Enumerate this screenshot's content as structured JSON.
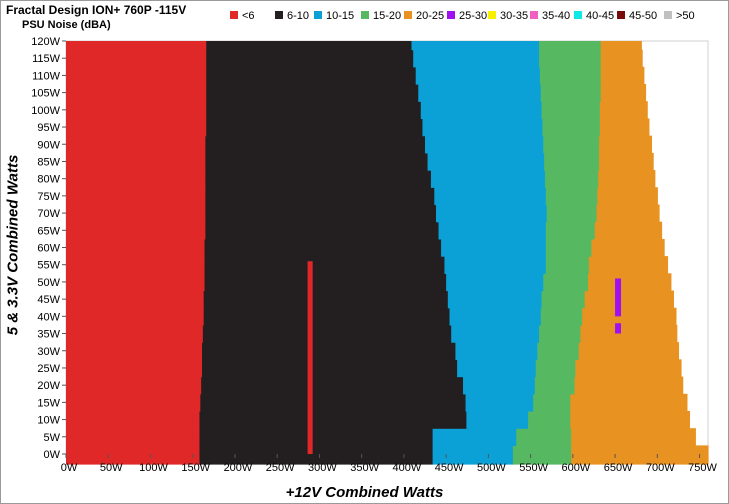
{
  "chart_data": {
    "type": "heatmap",
    "title": "Fractal Design ION+ 760P -115V",
    "subtitle": "PSU Noise (dBA)",
    "xlabel": "+12V Combined Watts",
    "ylabel": "5 & 3.3V Combined Watts",
    "xlim": [
      0,
      760
    ],
    "ylim": [
      0,
      120
    ],
    "x_ticks": [
      "0W",
      "50W",
      "100W",
      "150W",
      "200W",
      "250W",
      "300W",
      "350W",
      "400W",
      "450W",
      "500W",
      "550W",
      "600W",
      "650W",
      "700W",
      "750W"
    ],
    "y_ticks": [
      "0W",
      "5W",
      "10W",
      "15W",
      "20W",
      "25W",
      "30W",
      "35W",
      "40W",
      "45W",
      "50W",
      "55W",
      "60W",
      "65W",
      "70W",
      "75W",
      "80W",
      "85W",
      "90W",
      "95W",
      "100W",
      "105W",
      "110W",
      "115W",
      "120W"
    ],
    "legend_position": "top",
    "legend": [
      {
        "label": "<6",
        "color": "#e02828"
      },
      {
        "label": "6-10",
        "color": "#231f20"
      },
      {
        "label": "10-15",
        "color": "#0ca1d6"
      },
      {
        "label": "15-20",
        "color": "#57b862"
      },
      {
        "label": "20-25",
        "color": "#e89221"
      },
      {
        "label": "25-30",
        "color": "#a010f0"
      },
      {
        "label": "30-35",
        "color": "#f7f000"
      },
      {
        "label": "35-40",
        "color": "#f060c0"
      },
      {
        "label": "40-45",
        "color": "#10e8e8"
      },
      {
        "label": "45-50",
        "color": "#7a0b0b"
      },
      {
        "label": ">50",
        "color": "#c0c0c0"
      }
    ],
    "y_values": [
      0,
      5,
      10,
      15,
      20,
      25,
      30,
      35,
      40,
      45,
      50,
      55,
      60,
      65,
      70,
      75,
      80,
      85,
      90,
      95,
      100,
      105,
      110,
      115,
      120
    ],
    "band_boundaries": [
      [
        158,
        434,
        529,
        598,
        760
      ],
      [
        158,
        434,
        533,
        598,
        745
      ],
      [
        158,
        474,
        547,
        597,
        738
      ],
      [
        159,
        473,
        553,
        597,
        735
      ],
      [
        160,
        470,
        555,
        602,
        730
      ],
      [
        161,
        463,
        556,
        603,
        728
      ],
      [
        161,
        461,
        558,
        607,
        725
      ],
      [
        162,
        456,
        560,
        609,
        723
      ],
      [
        163,
        454,
        562,
        611,
        722
      ],
      [
        163,
        452,
        563,
        614,
        719
      ],
      [
        164,
        450,
        565,
        618,
        716
      ],
      [
        164,
        448,
        568,
        619,
        712
      ],
      [
        164,
        444,
        568,
        622,
        708
      ],
      [
        165,
        441,
        568,
        626,
        705
      ],
      [
        165,
        438,
        569,
        628,
        702
      ],
      [
        165,
        436,
        568,
        629,
        700
      ],
      [
        165,
        432,
        567,
        630,
        697
      ],
      [
        165,
        428,
        566,
        631,
        695
      ],
      [
        165,
        425,
        565,
        631,
        693
      ],
      [
        166,
        422,
        564,
        632,
        690
      ],
      [
        166,
        420,
        563,
        632,
        688
      ],
      [
        166,
        417,
        562,
        633,
        686
      ],
      [
        166,
        414,
        561,
        633,
        684
      ],
      [
        166,
        411,
        560,
        633,
        682
      ],
      [
        166,
        409,
        560,
        633,
        681
      ]
    ],
    "anomalies": [
      {
        "x": [
          286,
          292
        ],
        "y": [
          0,
          56
        ],
        "range": "<6"
      },
      {
        "x": [
          650,
          657
        ],
        "y": [
          40,
          51
        ],
        "range": "25-30"
      },
      {
        "x": [
          650,
          657
        ],
        "y": [
          35,
          38
        ],
        "range": "25-30"
      }
    ],
    "notes": "Each row lists +12V watt boundaries where noise range changes: <6 from 0 to b0, 6-10 from b0 to b1, 10-15 from b1 to b2, 15-20 from b2 to b3, 20-25 from b3 to b4."
  }
}
